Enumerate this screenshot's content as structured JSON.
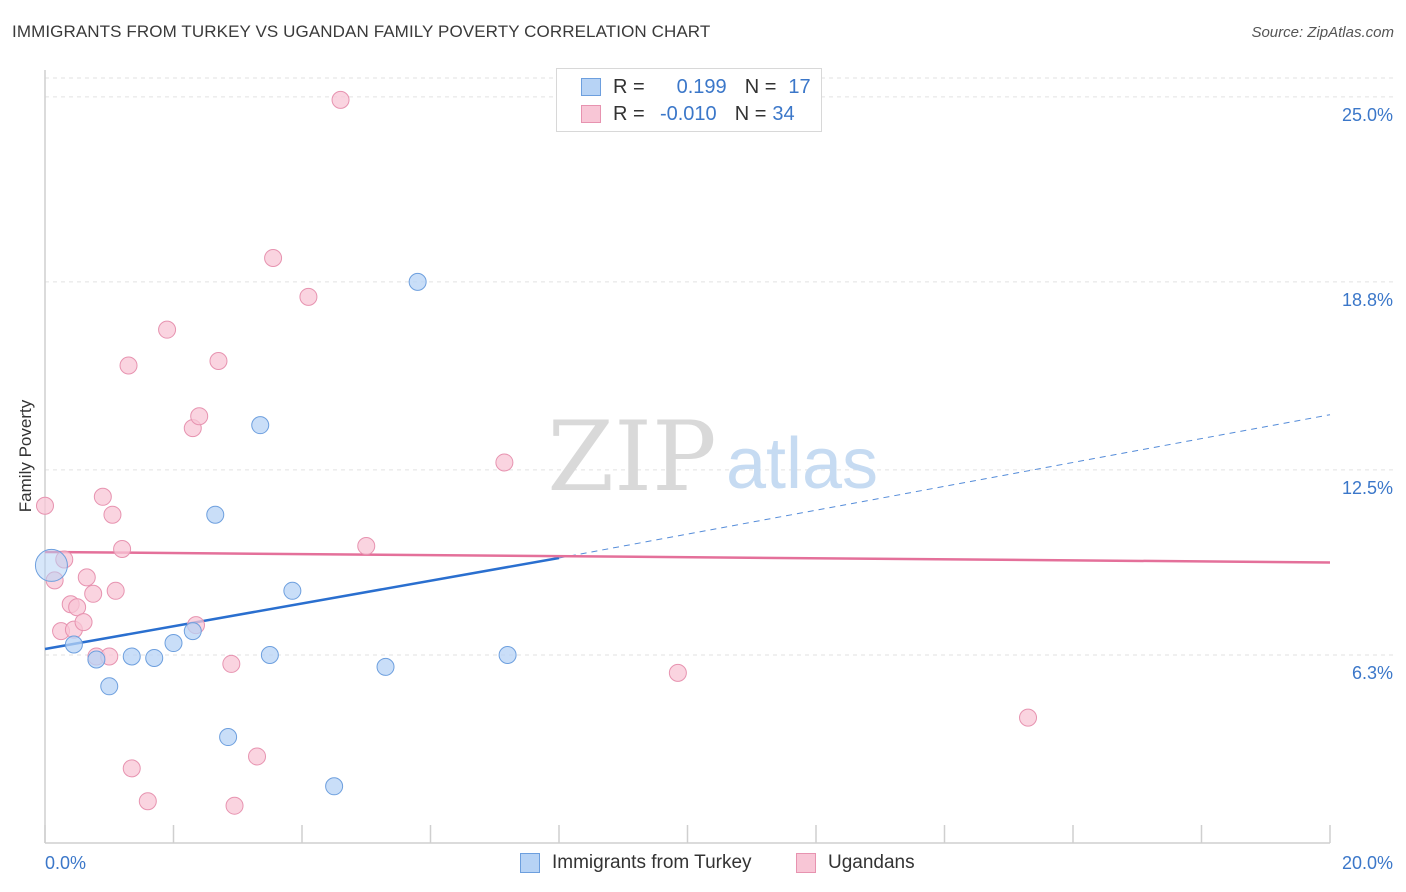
{
  "header": {
    "title": "IMMIGRANTS FROM TURKEY VS UGANDAN FAMILY POVERTY CORRELATION CHART",
    "source": "Source: ZipAtlas.com"
  },
  "watermark": {
    "zip": "ZIP",
    "atlas": "atlas"
  },
  "legend_top": {
    "rows": [
      {
        "r_label": "R =",
        "r_value": "0.199",
        "n_label": "N =",
        "n_value": "17"
      },
      {
        "r_label": "R =",
        "r_value": "-0.010",
        "n_label": "N =",
        "n_value": "34"
      }
    ]
  },
  "colors": {
    "blue_fill": "#b7d3f5",
    "blue_stroke": "#6d9fde",
    "blue_line": "#2a6fcf",
    "pink_fill": "#f8c6d6",
    "pink_stroke": "#e793b0",
    "pink_line": "#e4709a",
    "tick_label": "#3b77c9",
    "grid": "#e2e2e2"
  },
  "chart_data": {
    "type": "scatter",
    "title": "IMMIGRANTS FROM TURKEY VS UGANDAN FAMILY POVERTY CORRELATION CHART",
    "xlabel": "",
    "ylabel": "Family Poverty",
    "xlim": [
      0,
      20
    ],
    "ylim": [
      0,
      25.9
    ],
    "x_tick_labels": [
      "0.0%",
      "20.0%"
    ],
    "y_ticks": [
      6.3,
      12.5,
      18.8,
      25.0
    ],
    "y_tick_labels": [
      "6.3%",
      "12.5%",
      "18.8%",
      "25.0%"
    ],
    "grid": "horizontal dashed",
    "legend_position": "bottom-center",
    "series": [
      {
        "name": "Immigrants from Turkey",
        "color": "blue",
        "points": [
          [
            0.1,
            9.3
          ],
          [
            0.45,
            6.65
          ],
          [
            1.0,
            5.25
          ],
          [
            1.35,
            6.25
          ],
          [
            1.7,
            6.2
          ],
          [
            2.0,
            6.7
          ],
          [
            2.3,
            7.1
          ],
          [
            0.8,
            6.15
          ],
          [
            2.65,
            11.0
          ],
          [
            2.85,
            3.55
          ],
          [
            3.35,
            14.0
          ],
          [
            3.5,
            6.3
          ],
          [
            3.85,
            8.45
          ],
          [
            4.5,
            1.9
          ],
          [
            5.3,
            5.9
          ],
          [
            5.8,
            18.8
          ],
          [
            7.2,
            6.3
          ]
        ],
        "sizes": [
          "large",
          "normal",
          "normal",
          "normal",
          "normal",
          "normal",
          "normal",
          "normal",
          "normal",
          "normal",
          "normal",
          "normal",
          "normal",
          "normal",
          "normal",
          "normal",
          "normal"
        ],
        "trend": {
          "x": [
            0.0,
            8.0
          ],
          "y": [
            6.5,
            9.55
          ],
          "extended_dashed_to": [
            20.0,
            14.35
          ]
        }
      },
      {
        "name": "Ugandans",
        "color": "pink",
        "points": [
          [
            0.0,
            11.3
          ],
          [
            0.15,
            8.8
          ],
          [
            0.3,
            9.5
          ],
          [
            0.25,
            7.1
          ],
          [
            0.4,
            8.0
          ],
          [
            0.45,
            7.15
          ],
          [
            0.5,
            7.9
          ],
          [
            0.6,
            7.4
          ],
          [
            0.65,
            8.9
          ],
          [
            0.75,
            8.35
          ],
          [
            0.8,
            6.25
          ],
          [
            0.9,
            11.6
          ],
          [
            1.0,
            6.25
          ],
          [
            1.05,
            11.0
          ],
          [
            1.1,
            8.45
          ],
          [
            1.2,
            9.85
          ],
          [
            1.3,
            16.0
          ],
          [
            1.35,
            2.5
          ],
          [
            1.6,
            1.4
          ],
          [
            1.9,
            17.2
          ],
          [
            2.3,
            13.9
          ],
          [
            2.4,
            14.3
          ],
          [
            2.35,
            7.3
          ],
          [
            2.7,
            16.15
          ],
          [
            2.9,
            6.0
          ],
          [
            2.95,
            1.25
          ],
          [
            3.3,
            2.9
          ],
          [
            3.55,
            19.6
          ],
          [
            4.1,
            18.3
          ],
          [
            4.6,
            24.9
          ],
          [
            5.0,
            9.95
          ],
          [
            7.15,
            12.75
          ],
          [
            9.85,
            5.7
          ],
          [
            15.3,
            4.2
          ]
        ],
        "trend": {
          "x": [
            0.0,
            20.0
          ],
          "y": [
            9.75,
            9.4
          ]
        }
      }
    ]
  },
  "legend_bottom": {
    "items": [
      "Immigrants from Turkey",
      "Ugandans"
    ]
  }
}
